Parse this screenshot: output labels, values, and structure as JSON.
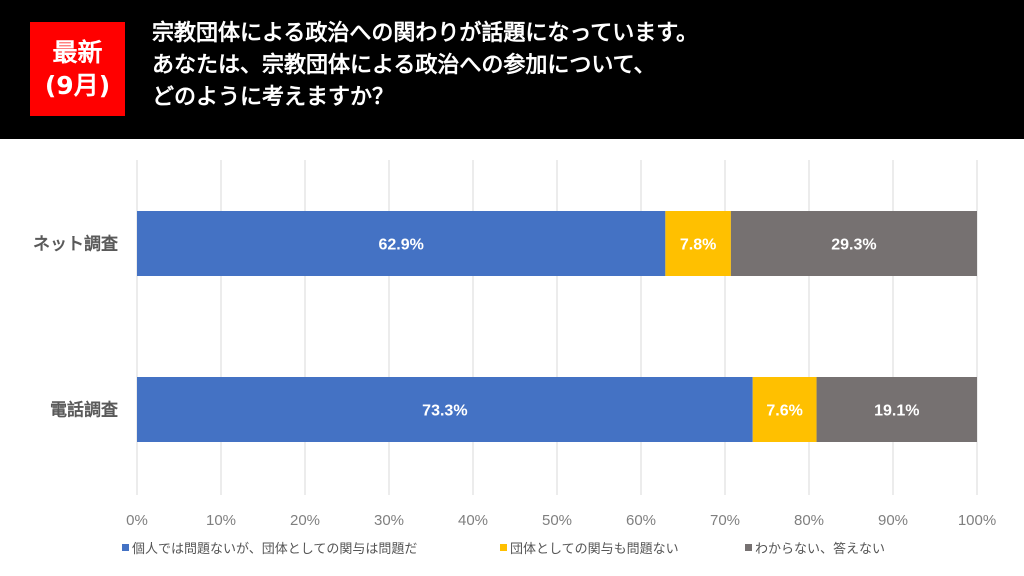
{
  "header": {
    "badge_line1": "最新",
    "badge_line2": "(9月)",
    "title_lines": [
      "宗教団体による政治への関わりが話題になっています。",
      "あなたは、宗教団体による政治への参加について、",
      "どのように考えますか？"
    ]
  },
  "colors": {
    "header_bg": "#000000",
    "badge_bg": "#ff0000",
    "series": [
      "#4472c4",
      "#ffc000",
      "#767171"
    ]
  },
  "chart_data": {
    "type": "bar",
    "orientation": "horizontal",
    "stacked": true,
    "title": "宗教団体による政治への参加について、どのように考えますか？",
    "categories": [
      "ネット調査",
      "電話調査"
    ],
    "series": [
      {
        "name": "個人では問題ないが、団体としての関与は問題だ",
        "values": [
          62.9,
          73.3
        ],
        "color": "#4472c4"
      },
      {
        "name": "団体としての関与も問題ない",
        "values": [
          7.8,
          7.6
        ],
        "color": "#ffc000"
      },
      {
        "name": "わからない、答えない",
        "values": [
          29.3,
          19.1
        ],
        "color": "#767171"
      }
    ],
    "data_labels": [
      [
        "62.9%",
        "73.3%"
      ],
      [
        "7.8%",
        "7.6%"
      ],
      [
        "29.3%",
        "19.1%"
      ]
    ],
    "xlim": [
      0,
      100
    ],
    "x_ticks": [
      "0%",
      "10%",
      "20%",
      "30%",
      "40%",
      "50%",
      "60%",
      "70%",
      "80%",
      "90%",
      "100%"
    ],
    "xlabel": "",
    "ylabel": "",
    "grid": true,
    "legend_position": "bottom"
  }
}
